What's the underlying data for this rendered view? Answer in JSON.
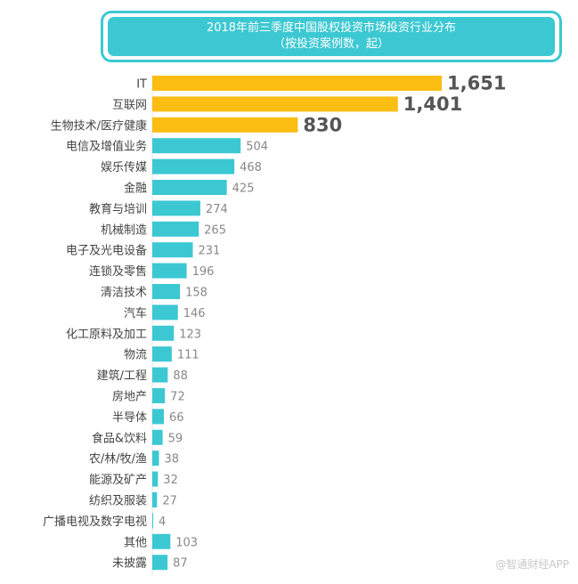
{
  "title": "2018年前三季度中国股权投资市场投资行业分布",
  "subtitle": "（按投资案例数，起）",
  "watermark": "@智通财经APP",
  "colors": {
    "highlight": "#fbbd12",
    "normal": "#3cc8d2",
    "label": "#444444",
    "value_highlight": "#555555",
    "value_normal": "#888888"
  },
  "chart_data": {
    "type": "bar",
    "orientation": "horizontal",
    "categories": [
      "IT",
      "互联网",
      "生物技术/医疗健康",
      "电信及增值业务",
      "娱乐传媒",
      "金融",
      "教育与培训",
      "机械制造",
      "电子及光电设备",
      "连锁及零售",
      "清洁技术",
      "汽车",
      "化工原料及加工",
      "物流",
      "建筑/工程",
      "房地产",
      "半导体",
      "食品&饮料",
      "农/林/牧/渔",
      "能源及矿产",
      "纺织及服装",
      "广播电视及数字电视",
      "其他",
      "未披露"
    ],
    "values": [
      1651,
      1401,
      830,
      504,
      468,
      425,
      274,
      265,
      231,
      196,
      158,
      146,
      123,
      111,
      88,
      72,
      66,
      59,
      38,
      32,
      27,
      4,
      103,
      87
    ],
    "value_labels": [
      "1,651",
      "1,401",
      "830",
      "504",
      "468",
      "425",
      "274",
      "265",
      "231",
      "196",
      "158",
      "146",
      "123",
      "111",
      "88",
      "72",
      "66",
      "59",
      "38",
      "32",
      "27",
      "4",
      "103",
      "87"
    ],
    "highlighted_top": 3,
    "xlabel": "",
    "ylabel": ""
  }
}
